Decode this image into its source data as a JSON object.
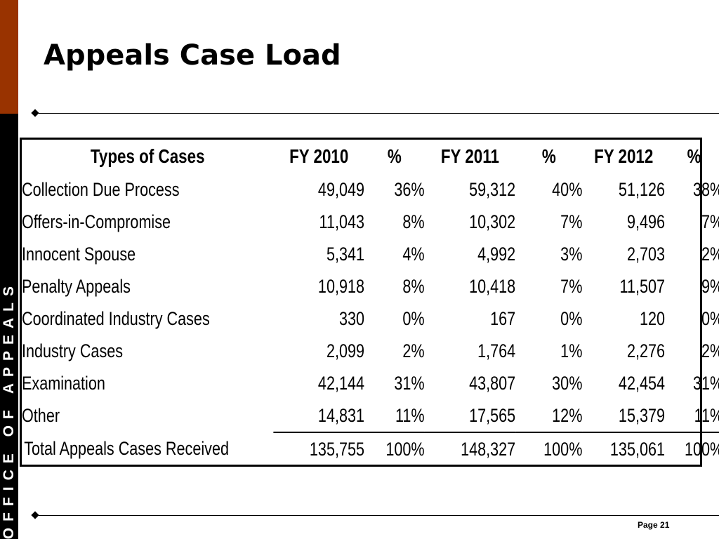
{
  "slide": {
    "title": "Appeals Case Load",
    "sidebar_text": "OFFICE OF APPEALS",
    "page_label": "Page 21"
  },
  "colors": {
    "sidebar_top": "#993300",
    "sidebar_bottom": "#000000"
  },
  "icons": [
    "diamond-bullet-icon"
  ],
  "table": {
    "headers": [
      "Types of Cases",
      "FY 2010",
      "%",
      "FY 2011",
      "%",
      "FY 2012",
      "%"
    ],
    "rows": [
      [
        "Collection Due Process",
        "49,049",
        "36%",
        "59,312",
        "40%",
        "51,126",
        "38%"
      ],
      [
        "Offers-in-Compromise",
        "11,043",
        "8%",
        "10,302",
        "7%",
        "9,496",
        "7%"
      ],
      [
        "Innocent Spouse",
        "5,341",
        "4%",
        "4,992",
        "3%",
        "2,703",
        "2%"
      ],
      [
        "Penalty Appeals",
        "10,918",
        "8%",
        "10,418",
        "7%",
        "11,507",
        "9%"
      ],
      [
        "Coordinated Industry Cases",
        "330",
        "0%",
        "167",
        "0%",
        "120",
        "0%"
      ],
      [
        "Industry Cases",
        "2,099",
        "2%",
        "1,764",
        "1%",
        "2,276",
        "2%"
      ],
      [
        "Examination",
        "42,144",
        "31%",
        "43,807",
        "30%",
        "42,454",
        "31%"
      ],
      [
        "Other",
        "14,831",
        "11%",
        "17,565",
        "12%",
        "15,379",
        "11%"
      ]
    ],
    "total": [
      "Total Appeals Cases Received",
      "135,755",
      "100%",
      "148,327",
      "100%",
      "135,061",
      "100%"
    ]
  }
}
